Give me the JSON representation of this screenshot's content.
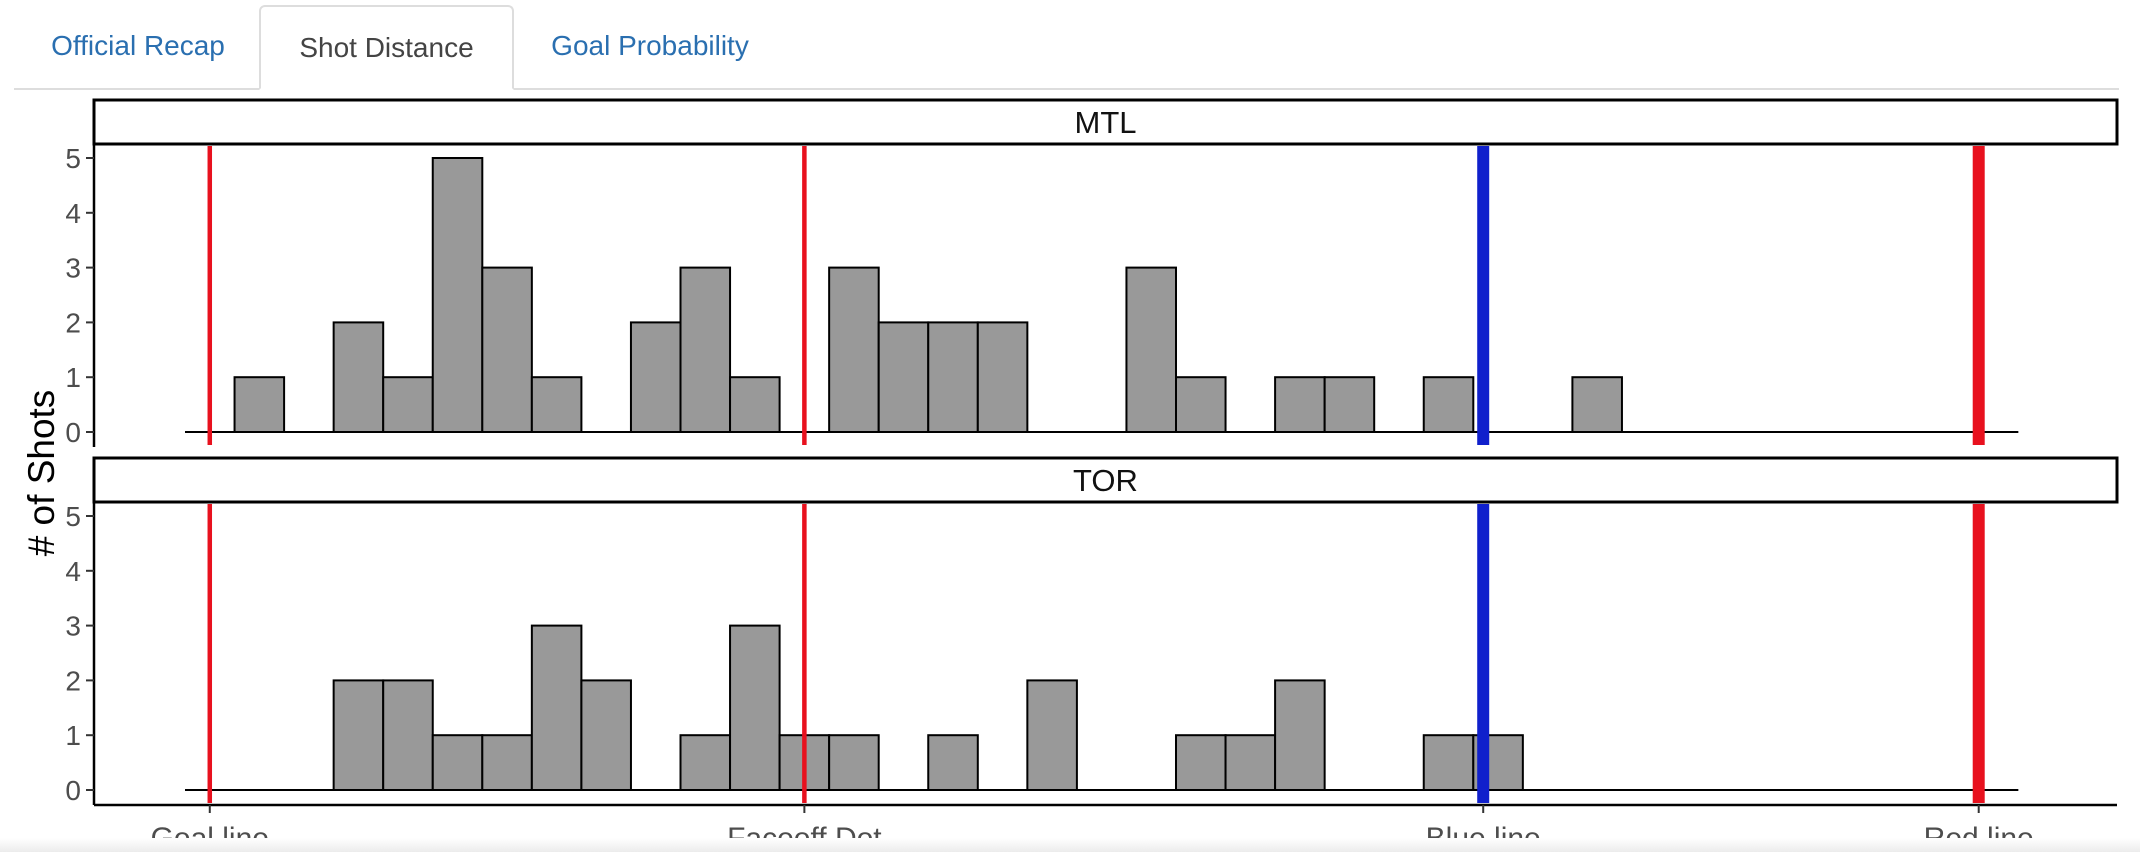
{
  "tabs": [
    {
      "label": "Official Recap",
      "active": false
    },
    {
      "label": "Shot Distance",
      "active": true
    },
    {
      "label": "Goal Probability",
      "active": false
    }
  ],
  "chart_data": {
    "type": "bar",
    "title": "",
    "ylabel": "# of Shots",
    "xlabel": "",
    "ylim": [
      0,
      5
    ],
    "yticks": [
      0,
      1,
      2,
      3,
      4,
      5
    ],
    "bins": 37,
    "x_ticks": [
      {
        "label": "Goal line",
        "bin": 0.5
      },
      {
        "label": "Faceoff Dot",
        "bin": 12.5
      },
      {
        "label": "Blue line",
        "bin": 26.2
      },
      {
        "label": "Red line",
        "bin": 36.2
      }
    ],
    "reference_lines": [
      {
        "label": "Goal line",
        "bin": 0.5,
        "color": "#e8111e",
        "weight": "thin"
      },
      {
        "label": "Faceoff Dot",
        "bin": 12.5,
        "color": "#e8111e",
        "weight": "thin"
      },
      {
        "label": "Blue line",
        "bin": 26.2,
        "color": "#1020cc",
        "weight": "thick"
      },
      {
        "label": "Red line",
        "bin": 36.2,
        "color": "#e8111e",
        "weight": "thick"
      }
    ],
    "bar_color": "#999999",
    "series": [
      {
        "name": "MTL",
        "values": [
          0,
          1,
          0,
          2,
          1,
          5,
          3,
          1,
          0,
          2,
          3,
          1,
          0,
          3,
          2,
          2,
          2,
          0,
          0,
          3,
          1,
          0,
          1,
          1,
          0,
          1,
          0,
          0,
          1,
          0,
          0,
          0,
          0,
          0,
          0,
          0,
          0
        ]
      },
      {
        "name": "TOR",
        "values": [
          0,
          0,
          0,
          2,
          2,
          1,
          1,
          3,
          2,
          0,
          1,
          3,
          1,
          1,
          0,
          1,
          0,
          2,
          0,
          0,
          1,
          1,
          2,
          0,
          0,
          1,
          1,
          0,
          0,
          0,
          0,
          0,
          0,
          0,
          0,
          0,
          0
        ]
      }
    ]
  }
}
